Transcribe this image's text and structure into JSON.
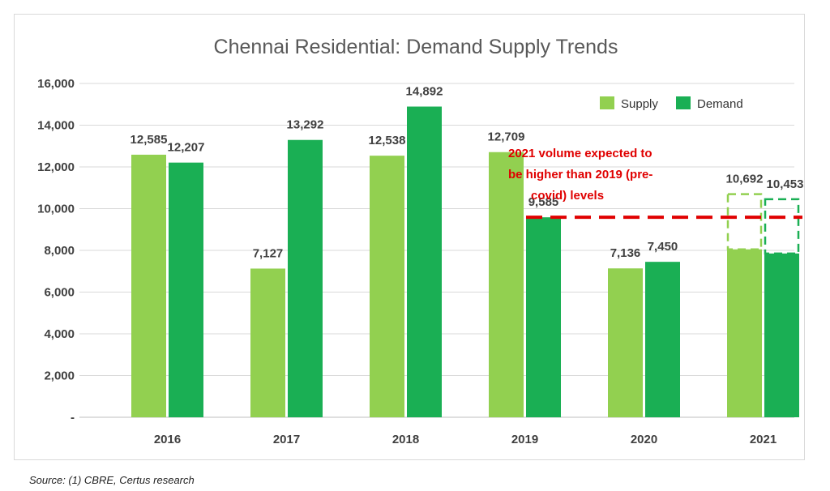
{
  "chart_data": {
    "type": "bar",
    "title": "Chennai Residential: Demand Supply Trends",
    "categories": [
      "2016",
      "2017",
      "2018",
      "2019",
      "2020",
      "2021"
    ],
    "series": [
      {
        "name": "Supply",
        "values": [
          12585,
          7127,
          12538,
          12709,
          7136,
          10692
        ],
        "actual_2021": 8050
      },
      {
        "name": "Demand",
        "values": [
          12207,
          13292,
          14892,
          9585,
          7450,
          10453
        ],
        "actual_2021": 7850
      }
    ],
    "value_labels": {
      "supply": [
        "12,585",
        "7,127",
        "12,538",
        "12,709",
        "7,136",
        "10,692"
      ],
      "demand": [
        "12,207",
        "13,292",
        "14,892",
        "9,585",
        "7,450",
        "10,453"
      ]
    },
    "y_ticks": [
      "-",
      "2,000",
      "4,000",
      "6,000",
      "8,000",
      "10,000",
      "12,000",
      "14,000",
      "16,000"
    ],
    "ylim": [
      0,
      16000
    ],
    "grid": true,
    "legend_position": "top-right",
    "reference_line": {
      "value": 9585,
      "style": "dashed",
      "color": "#e00000"
    },
    "annotation": {
      "lines": [
        "2021 volume expected to",
        "be higher than 2019 (pre-",
        "covid) levels"
      ],
      "color": "#e00000"
    },
    "projected_outline_style": "dashed",
    "colors": {
      "supply": "#92d050",
      "demand": "#1aaf54",
      "grid": "#d9d9d9",
      "text": "#404040",
      "annotation": "#e00000"
    }
  },
  "source": "Source: (1)  CBRE, Certus research"
}
